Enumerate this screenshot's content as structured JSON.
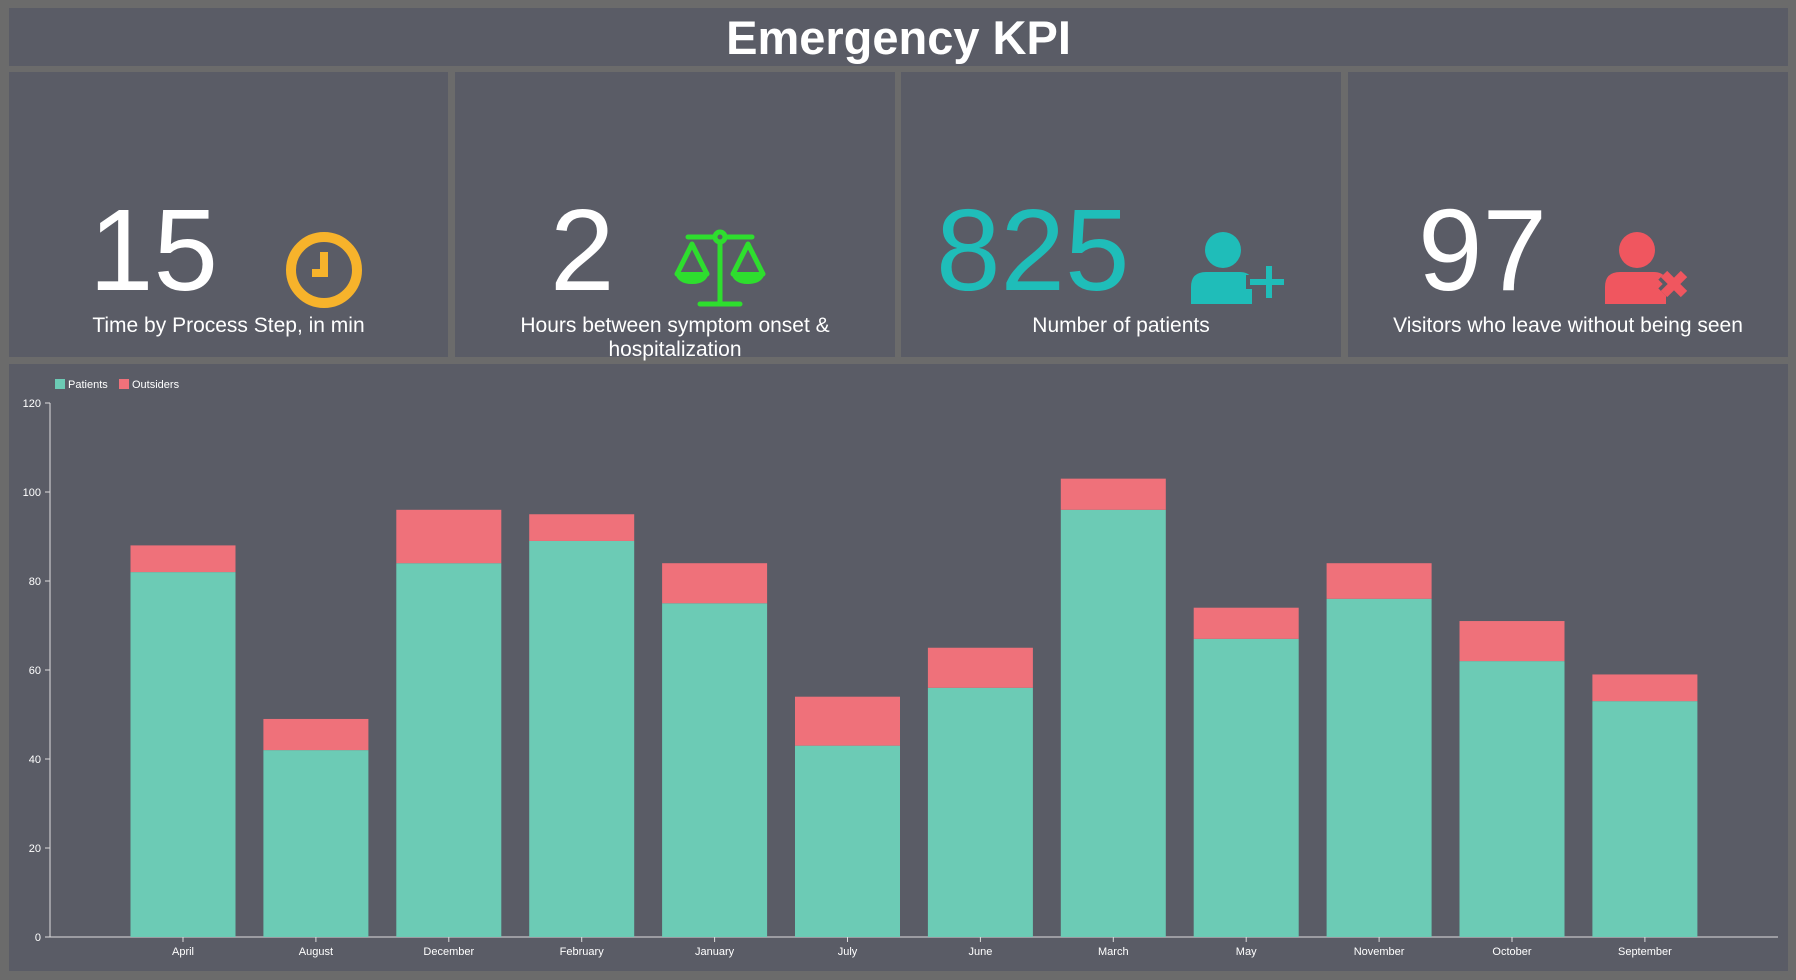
{
  "header": {
    "title": "Emergency KPI"
  },
  "kpis": [
    {
      "value": "15",
      "label": "Time by Process Step, in min",
      "icon": "clock-icon",
      "color": "#f7b32b",
      "value_color": "#ffffff"
    },
    {
      "value": "2",
      "label": "Hours between symptom onset & hospitalization",
      "icon": "scale-icon",
      "color": "#2ede2e",
      "value_color": "#ffffff"
    },
    {
      "value": "825",
      "label": "Number of patients",
      "icon": "user-plus-icon",
      "color": "#1fbdb9",
      "value_color": "#1fbdb9"
    },
    {
      "value": "97",
      "label": "Visitors who leave without being seen",
      "icon": "user-x-icon",
      "color": "#f0565f",
      "value_color": "#ffffff"
    }
  ],
  "chart_data": {
    "type": "bar",
    "stacked": true,
    "categories": [
      "April",
      "August",
      "December",
      "February",
      "January",
      "July",
      "June",
      "March",
      "May",
      "November",
      "October",
      "September"
    ],
    "series": [
      {
        "name": "Patients",
        "color": "#6ccbb5",
        "values": [
          82,
          42,
          84,
          89,
          75,
          43,
          56,
          96,
          67,
          76,
          62,
          53
        ]
      },
      {
        "name": "Outsiders",
        "color": "#ef717a",
        "values": [
          6,
          7,
          12,
          6,
          9,
          11,
          9,
          7,
          7,
          8,
          9,
          6
        ]
      }
    ],
    "ylim": [
      0,
      120
    ],
    "yticks": [
      0,
      20,
      40,
      60,
      80,
      100,
      120
    ],
    "grid": false,
    "legend": "top-left"
  }
}
